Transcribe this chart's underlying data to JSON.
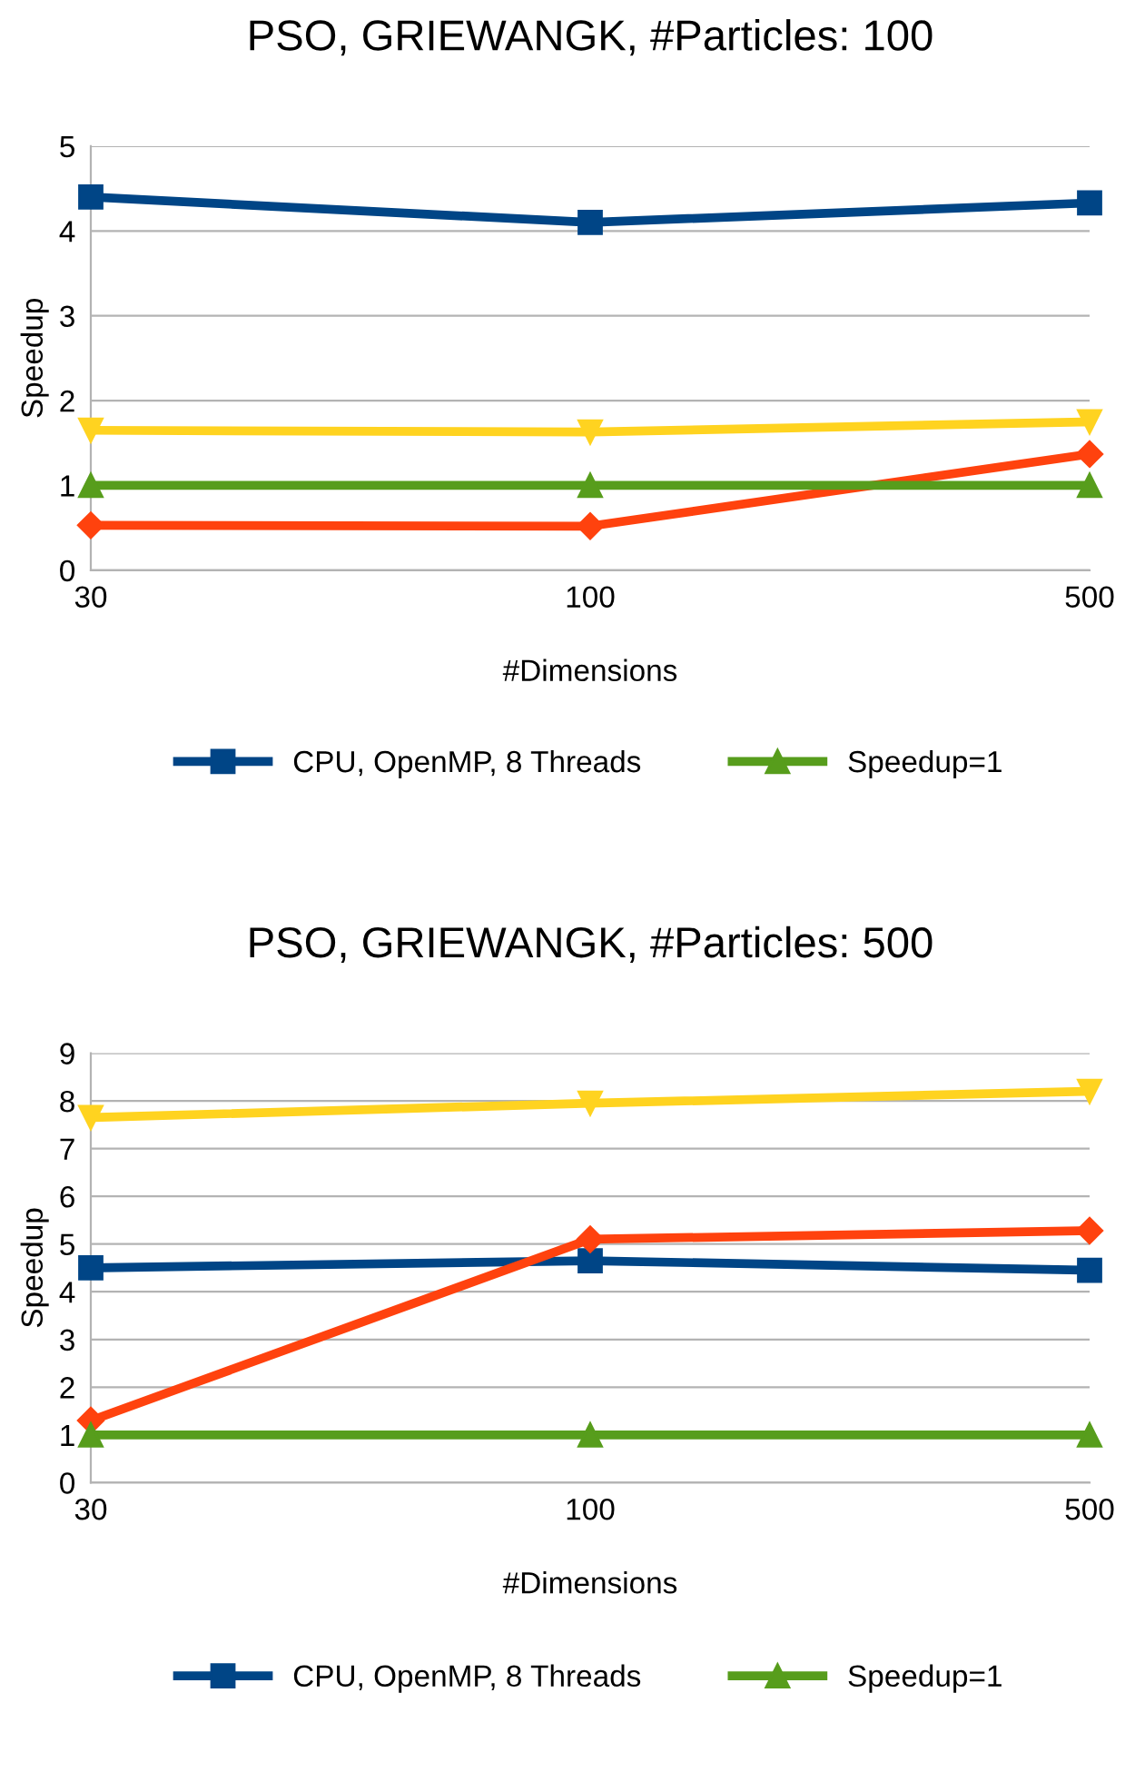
{
  "chart_data": [
    {
      "type": "line",
      "title": "PSO, GRIEWANGK, #Particles: 100",
      "xlabel": "#Dimensions",
      "ylabel": "Speedup",
      "categories": [
        "30",
        "100",
        "500"
      ],
      "ylim": [
        0,
        5
      ],
      "yticks": [
        0,
        1,
        2,
        3,
        4,
        5
      ],
      "grid": "y",
      "legend": "bottom",
      "line_style": "solid",
      "series": [
        {
          "name": "CPU, OpenMP, 8 Threads",
          "color": "#004586",
          "marker": "square",
          "values": [
            4.4,
            4.1,
            4.33
          ]
        },
        {
          "color": "#ff420e",
          "marker": "diamond",
          "values": [
            0.53,
            0.52,
            1.37
          ]
        },
        {
          "color": "#ffd320",
          "marker": "triangle_down",
          "values": [
            1.65,
            1.63,
            1.75
          ]
        },
        {
          "name": "Speedup=1",
          "color": "#579d1c",
          "marker": "triangle",
          "values": [
            1,
            1,
            1
          ]
        }
      ]
    },
    {
      "type": "line",
      "title": "PSO, GRIEWANGK, #Particles: 500",
      "xlabel": "#Dimensions",
      "ylabel": "Speedup",
      "categories": [
        "30",
        "100",
        "500"
      ],
      "ylim": [
        0,
        9
      ],
      "yticks": [
        0,
        1,
        2,
        3,
        4,
        5,
        6,
        7,
        8,
        9
      ],
      "grid": "y",
      "legend": "bottom",
      "line_style": "solid",
      "series": [
        {
          "name": "CPU, OpenMP, 8 Threads",
          "color": "#004586",
          "marker": "square",
          "values": [
            4.5,
            4.65,
            4.45
          ]
        },
        {
          "color": "#ff420e",
          "marker": "diamond",
          "values": [
            1.3,
            5.1,
            5.28
          ]
        },
        {
          "color": "#ffd320",
          "marker": "triangle_down",
          "values": [
            7.65,
            7.95,
            8.2
          ]
        },
        {
          "name": "Speedup=1",
          "color": "#579d1c",
          "marker": "triangle",
          "values": [
            1,
            1,
            1
          ]
        }
      ]
    }
  ]
}
